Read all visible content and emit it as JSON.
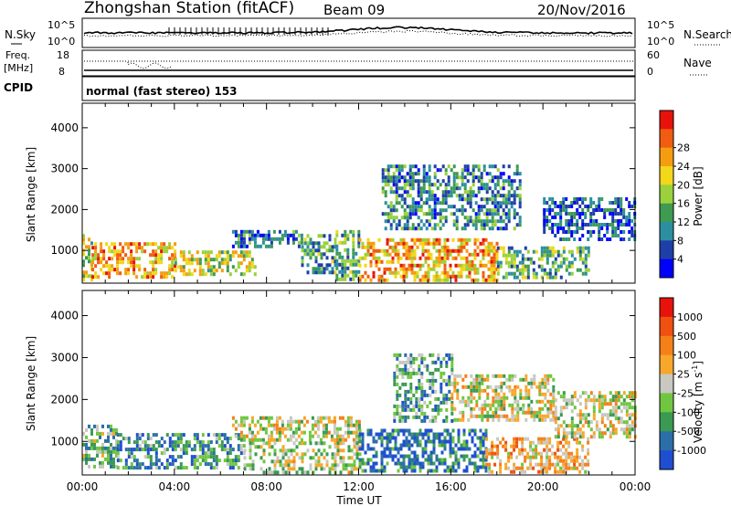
{
  "header": {
    "station": "Zhongshan Station (fitACF)",
    "beam": "Beam 09",
    "date": "20/Nov/2016"
  },
  "params": {
    "nsky_label": "N.Sky",
    "nsky_ticks": [
      "10^5",
      "10^0"
    ],
    "nsearch_label": "N.Search",
    "nsearch_ticks": [
      "10^5",
      "10^0"
    ],
    "freq_label": "Freq.",
    "freq_unit": "[MHz]",
    "freq_ticks": [
      "18",
      "8"
    ],
    "nave_label": "Nave",
    "nave_ticks": [
      "60",
      "0"
    ],
    "cpid_label": "CPID",
    "cpid_value": "normal (fast stereo) 153"
  },
  "chart_data": [
    {
      "type": "heatmap",
      "name": "power-panel",
      "ylabel": "Slant Range [km]",
      "yticks": [
        1000,
        2000,
        3000,
        4000
      ],
      "ylim": [
        200,
        4600
      ],
      "xlim_hours": [
        0,
        24
      ],
      "colorbar": {
        "label": "Power [dB]",
        "ticks": [
          "4",
          "8",
          "12",
          "16",
          "20",
          "24",
          "28"
        ],
        "colors": [
          "#0000ff",
          "#1f3fa8",
          "#2c8fa0",
          "#3f9a52",
          "#9ad13c",
          "#f2d71a",
          "#f59d10",
          "#f05c12",
          "#e8120c"
        ],
        "range": [
          0,
          31
        ]
      },
      "regions": [
        {
          "t0": 0.0,
          "t1": 0.4,
          "r0": 300,
          "r1": 1400,
          "level": 0.55
        },
        {
          "t0": 0.4,
          "t1": 4.0,
          "r0": 350,
          "r1": 1200,
          "level": 0.7
        },
        {
          "t0": 4.0,
          "t1": 7.5,
          "r0": 400,
          "r1": 1000,
          "level": 0.55
        },
        {
          "t0": 6.5,
          "t1": 9.5,
          "r0": 1100,
          "r1": 1500,
          "level": 0.25
        },
        {
          "t0": 9.5,
          "t1": 11.0,
          "r0": 500,
          "r1": 1400,
          "level": 0.35
        },
        {
          "t0": 11.0,
          "t1": 12.0,
          "r0": 300,
          "r1": 1500,
          "level": 0.4
        },
        {
          "t0": 12.0,
          "t1": 18.0,
          "r0": 300,
          "r1": 1300,
          "level": 0.7
        },
        {
          "t0": 13.0,
          "t1": 19.0,
          "r0": 1500,
          "r1": 3100,
          "level": 0.3
        },
        {
          "t0": 18.0,
          "t1": 22.0,
          "r0": 300,
          "r1": 1100,
          "level": 0.4
        },
        {
          "t0": 20.0,
          "t1": 24.0,
          "r0": 1300,
          "r1": 2300,
          "level": 0.2
        }
      ]
    },
    {
      "type": "heatmap",
      "name": "velocity-panel",
      "ylabel": "Slant Range [km]",
      "yticks": [
        1000,
        2000,
        3000,
        4000
      ],
      "ylim": [
        200,
        4600
      ],
      "xlim_hours": [
        0,
        24
      ],
      "xticks": [
        "00:00",
        "04:00",
        "08:00",
        "12:00",
        "16:00",
        "20:00",
        "00:00"
      ],
      "xlabel": "Time UT",
      "colorbar": {
        "label": "Velocity [m s",
        "label_sup": "-1",
        "label_end": "]",
        "ticks": [
          "1000",
          "500",
          "100",
          "25",
          "-25",
          "-100",
          "-500",
          "-1000"
        ],
        "colors": [
          "#1f4fd0",
          "#2c6fa8",
          "#3a9a52",
          "#70c640",
          "#c8c8c0",
          "#f7a72a",
          "#f5801a",
          "#f05010",
          "#e8120c"
        ],
        "range": [
          -1200,
          1200
        ]
      },
      "regions": [
        {
          "t0": 0.0,
          "t1": 1.5,
          "r0": 400,
          "r1": 1400,
          "level": 0.35
        },
        {
          "t0": 1.5,
          "t1": 7.0,
          "r0": 400,
          "r1": 1200,
          "level": 0.25
        },
        {
          "t0": 6.5,
          "t1": 12.0,
          "r0": 1000,
          "r1": 1600,
          "level": 0.5
        },
        {
          "t0": 7.0,
          "t1": 12.0,
          "r0": 300,
          "r1": 1000,
          "level": 0.45
        },
        {
          "t0": 12.0,
          "t1": 17.5,
          "r0": 300,
          "r1": 1300,
          "level": 0.15
        },
        {
          "t0": 13.5,
          "t1": 16.0,
          "r0": 1500,
          "r1": 3100,
          "level": 0.3
        },
        {
          "t0": 16.0,
          "t1": 20.5,
          "r0": 1500,
          "r1": 2600,
          "level": 0.5
        },
        {
          "t0": 17.5,
          "t1": 22.0,
          "r0": 300,
          "r1": 1100,
          "level": 0.62
        },
        {
          "t0": 20.5,
          "t1": 24.0,
          "r0": 1100,
          "r1": 2200,
          "level": 0.5
        }
      ]
    }
  ]
}
